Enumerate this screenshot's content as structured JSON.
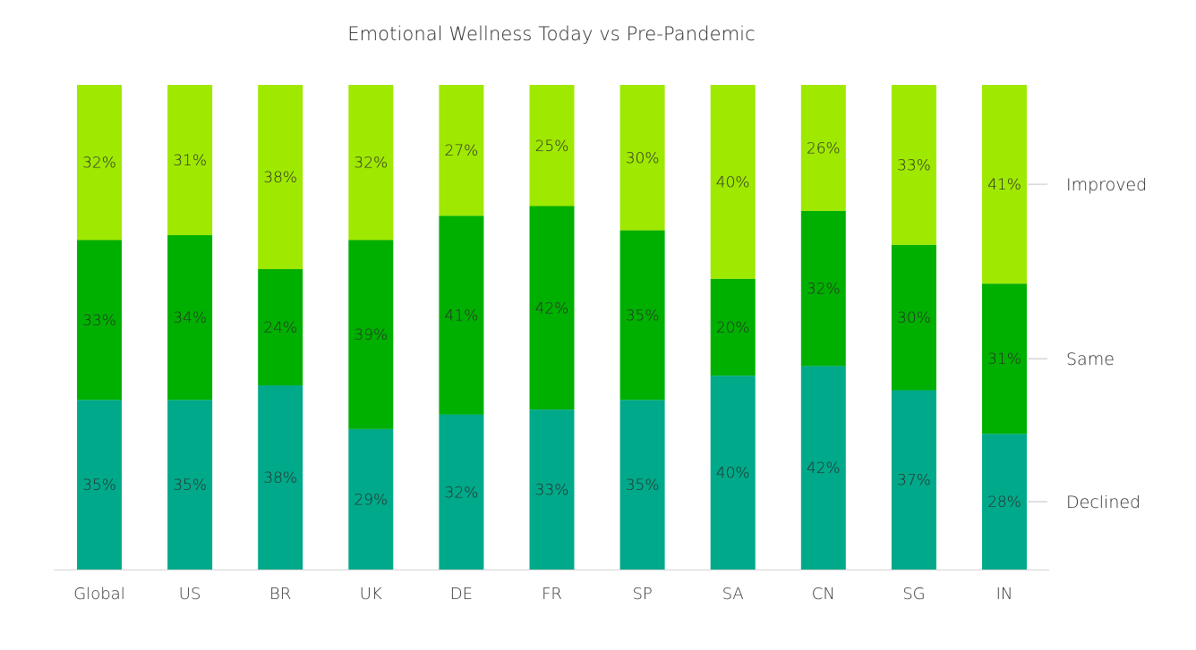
{
  "chart_data": {
    "type": "bar",
    "stacked": true,
    "title": "Emotional Wellness Today vs Pre-Pandemic",
    "categories": [
      "Global",
      "US",
      "BR",
      "UK",
      "DE",
      "FR",
      "SP",
      "SA",
      "CN",
      "SG",
      "IN"
    ],
    "series": [
      {
        "name": "Declined",
        "color": "#00a98a",
        "values": [
          35,
          35,
          38,
          29,
          32,
          33,
          35,
          40,
          42,
          37,
          28
        ]
      },
      {
        "name": "Same",
        "color": "#00b000",
        "values": [
          33,
          34,
          24,
          39,
          41,
          42,
          35,
          20,
          32,
          30,
          31
        ]
      },
      {
        "name": "Improved",
        "color": "#9fe800",
        "values": [
          32,
          31,
          38,
          32,
          27,
          25,
          30,
          40,
          26,
          33,
          41
        ]
      }
    ],
    "value_suffix": "%",
    "ylim": [
      0,
      100
    ],
    "grid": false,
    "legend_placement": "right"
  }
}
